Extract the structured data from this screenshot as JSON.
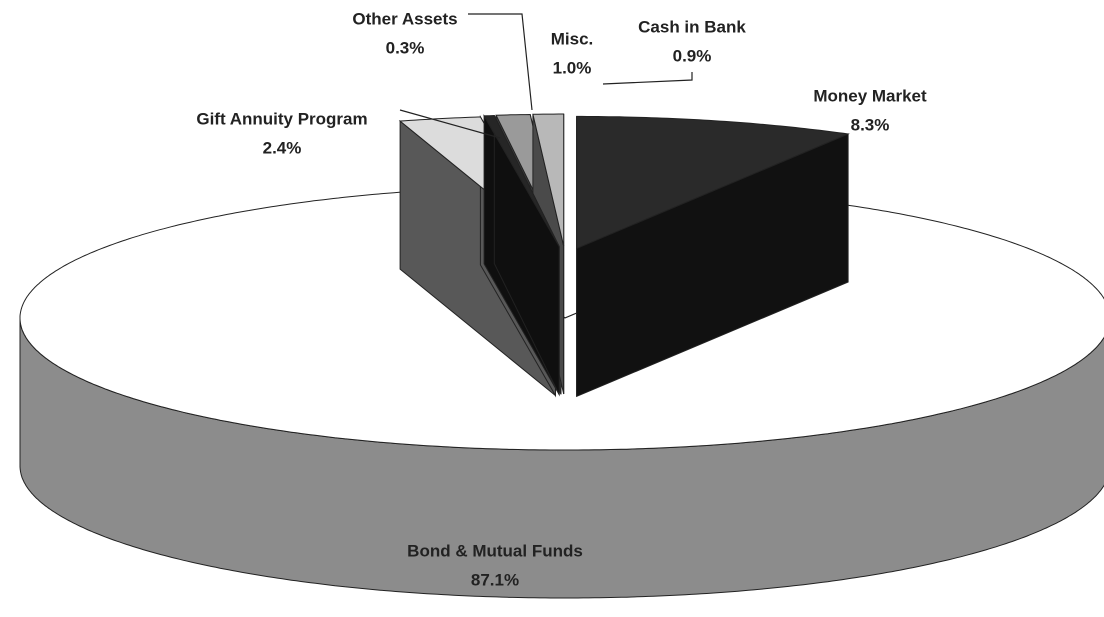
{
  "chart_data": {
    "type": "pie3d",
    "categories": [
      "Money Market",
      "Bond & Mutual Funds",
      "Gift Annuity Program",
      "Other Assets",
      "Misc.",
      "Cash in Bank"
    ],
    "values": [
      8.3,
      87.1,
      2.4,
      0.3,
      1.0,
      0.9
    ],
    "value_labels": [
      "8.3%",
      "87.1%",
      "2.4%",
      "0.3%",
      "1.0%",
      "0.9%"
    ],
    "colors": [
      "#2a2a2a",
      "#ffffff",
      "#dcdcdc",
      "#262626",
      "#9a9a9a",
      "#b8b8b8"
    ]
  }
}
